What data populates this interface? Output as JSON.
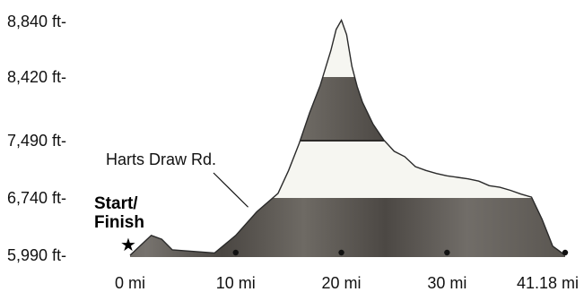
{
  "chart_data": {
    "type": "area",
    "x_unit": "mi",
    "y_unit": "ft",
    "x": [
      0,
      1,
      2,
      3,
      4,
      6,
      8,
      10,
      12,
      14,
      15,
      16,
      17,
      18,
      19,
      19.5,
      20,
      20.5,
      21,
      21.5,
      22,
      23,
      24,
      25,
      26,
      27,
      28,
      29,
      30,
      31,
      32,
      33,
      34,
      35,
      36,
      37,
      38,
      39,
      40,
      41.18
    ],
    "y": [
      5990,
      6120,
      6250,
      6200,
      6060,
      6040,
      6020,
      6250,
      6560,
      6800,
      7100,
      7450,
      7900,
      8300,
      8620,
      8780,
      8850,
      8740,
      8500,
      8280,
      8050,
      7730,
      7500,
      7350,
      7280,
      7150,
      7100,
      7060,
      7030,
      7010,
      6990,
      6960,
      6900,
      6880,
      6840,
      6790,
      6750,
      6460,
      6110,
      5990
    ],
    "y_ticks": [
      5990,
      6740,
      7490,
      8420,
      8840
    ],
    "y_tick_labels": [
      "5,990 ft-",
      "6,740 ft-",
      "7,490 ft-",
      "8,420 ft-",
      "8,840 ft-"
    ],
    "x_ticks": [
      0,
      10,
      20,
      30,
      41.18
    ],
    "x_tick_labels": [
      "0 mi",
      "10 mi",
      "20 mi",
      "30 mi",
      "41.18 mi"
    ],
    "xlim": [
      0,
      41.18
    ],
    "annotations": [
      {
        "text": "Harts Draw Rd.",
        "x": 11,
        "y": 6620
      },
      {
        "text": "Start/",
        "x": 0,
        "y": 6190
      },
      {
        "text": "Finish",
        "x": 0,
        "y": 6190
      }
    ],
    "bands": [
      {
        "from": 5990,
        "to": 6740,
        "tone": "dark"
      },
      {
        "from": 6740,
        "to": 7490,
        "tone": "light"
      },
      {
        "from": 7490,
        "to": 8420,
        "tone": "dark"
      },
      {
        "from": 8420,
        "to": 8840,
        "tone": "light"
      }
    ],
    "markers_x": [
      10,
      20,
      30,
      41.18
    ],
    "grid": false,
    "colors": {
      "dark_band": "#5e5a55",
      "light_band": "#f6f6f1",
      "outline": "#2a2a2a"
    }
  }
}
